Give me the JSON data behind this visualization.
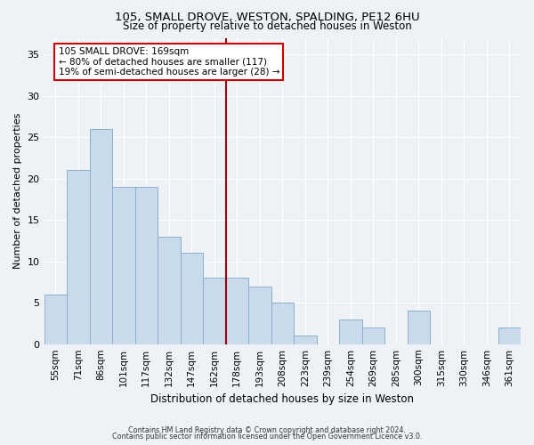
{
  "title": "105, SMALL DROVE, WESTON, SPALDING, PE12 6HU",
  "subtitle": "Size of property relative to detached houses in Weston",
  "xlabel": "Distribution of detached houses by size in Weston",
  "ylabel": "Number of detached properties",
  "bar_labels": [
    "55sqm",
    "71sqm",
    "86sqm",
    "101sqm",
    "117sqm",
    "132sqm",
    "147sqm",
    "162sqm",
    "178sqm",
    "193sqm",
    "208sqm",
    "223sqm",
    "239sqm",
    "254sqm",
    "269sqm",
    "285sqm",
    "300sqm",
    "315sqm",
    "330sqm",
    "346sqm",
    "361sqm"
  ],
  "bar_values": [
    6,
    21,
    26,
    19,
    19,
    13,
    11,
    8,
    8,
    7,
    5,
    1,
    0,
    3,
    2,
    0,
    4,
    0,
    0,
    0,
    2
  ],
  "bar_color": "#c9daea",
  "bar_edgecolor": "#8ab0cc",
  "ylim": [
    0,
    37
  ],
  "yticks": [
    0,
    5,
    10,
    15,
    20,
    25,
    30,
    35
  ],
  "vline_color": "#99000d",
  "annotation_title": "105 SMALL DROVE: 169sqm",
  "annotation_line2": "← 80% of detached houses are smaller (117)",
  "annotation_line3": "19% of semi-detached houses are larger (28) →",
  "annotation_box_color": "#cc0000",
  "bg_color": "#eef2f7",
  "grid_color": "#ffffff",
  "footer1": "Contains HM Land Registry data © Crown copyright and database right 2024.",
  "footer2": "Contains public sector information licensed under the Open Government Licence v3.0."
}
